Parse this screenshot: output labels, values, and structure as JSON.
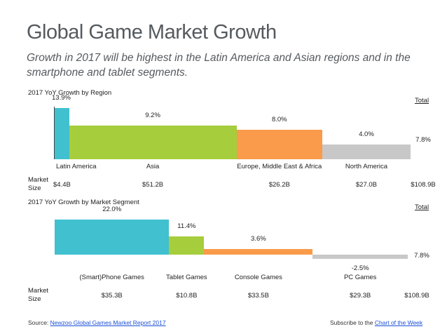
{
  "title": "Global Game Market Growth",
  "subtitle": "Growth in 2017 will be highest in the Latin America and Asian regions and in the smartphone and tablet segments.",
  "footer": {
    "source_prefix": "Source:",
    "source_link": "Newzoo Global Games Market Report 2017",
    "subscribe_prefix": "Subscribe to the",
    "subscribe_link": "Chart of the Week"
  },
  "chart_data": [
    {
      "type": "bar",
      "title": "2017 YoY Growth by Region",
      "categories": [
        "Latin America",
        "Asia",
        "Europe, Middle East & Africa",
        "North America"
      ],
      "values": [
        13.9,
        9.2,
        8.0,
        4.0
      ],
      "value_labels": [
        "13.9%",
        "9.2%",
        "8.0%",
        "4.0%"
      ],
      "market_size_label": "Market Size",
      "market_sizes": [
        "$4.4B",
        "$51.2B",
        "$26.2B",
        "$27.0B"
      ],
      "market_size_values": [
        4.4,
        51.2,
        26.2,
        27.0
      ],
      "total_label": "Total",
      "total_value": 7.8,
      "total_value_label": "7.8%",
      "total_market_size": "$108.9B",
      "colors": [
        "#41c0cf",
        "#a6cd3c",
        "#f99b4a",
        "#c8c8c8"
      ],
      "ylim": [
        0,
        13.9
      ]
    },
    {
      "type": "bar",
      "title": "2017 YoY Growth by Market Segment",
      "categories": [
        "(Smart)Phone Games",
        "Tablet Games",
        "Console Games",
        "PC Games"
      ],
      "values": [
        22.0,
        11.4,
        3.6,
        -2.5
      ],
      "value_labels": [
        "22.0%",
        "11.4%",
        "3.6%",
        "-2.5%"
      ],
      "market_size_label": "Market Size",
      "market_sizes": [
        "$35.3B",
        "$10.8B",
        "$33.5B",
        "$29.3B"
      ],
      "market_size_values": [
        35.3,
        10.8,
        33.5,
        29.3
      ],
      "total_label": "Total",
      "total_value": 7.8,
      "total_value_label": "7.8%",
      "total_market_size": "$108.9B",
      "colors": [
        "#41c0cf",
        "#a6cd3c",
        "#f99b4a",
        "#c8c8c8"
      ],
      "ylim": [
        -2.5,
        22.0
      ]
    }
  ]
}
